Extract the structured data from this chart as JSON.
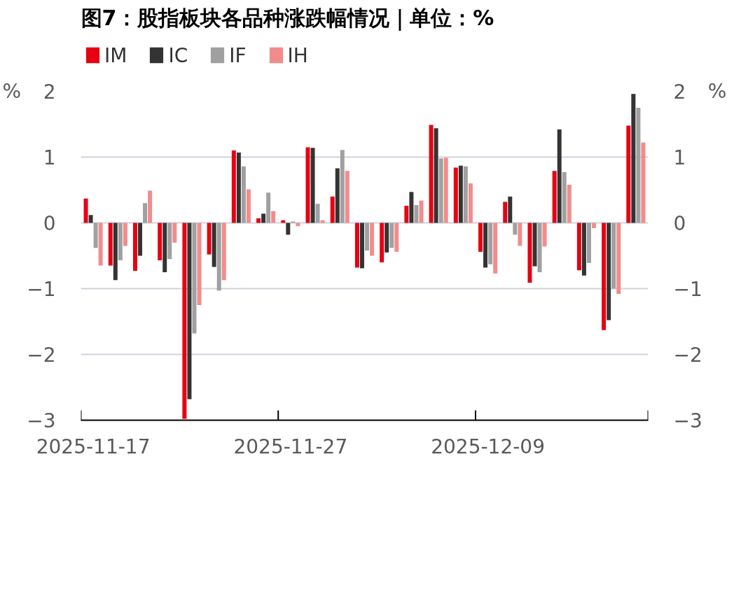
{
  "chart_data": {
    "type": "bar",
    "title": "图7：股指板块各品种涨跌幅情况｜单位：%",
    "categories": [
      "2025-11-17",
      null,
      null,
      null,
      null,
      null,
      null,
      null,
      "2025-11-27",
      null,
      null,
      null,
      null,
      null,
      null,
      null,
      "2025-12-09",
      null,
      null,
      null,
      null,
      null,
      null
    ],
    "series": [
      {
        "name": "IM",
        "color": "#e60012",
        "values": [
          0.37,
          -0.65,
          -0.73,
          -0.57,
          -2.98,
          -0.48,
          1.1,
          0.07,
          0.04,
          1.15,
          0.4,
          -0.68,
          -0.6,
          0.26,
          1.49,
          0.84,
          -0.44,
          0.32,
          -0.91,
          0.79,
          -0.72,
          -1.63,
          1.48
        ]
      },
      {
        "name": "IC",
        "color": "#333333",
        "values": [
          0.12,
          -0.87,
          -0.5,
          -0.75,
          -2.68,
          -0.67,
          1.07,
          0.14,
          -0.18,
          1.14,
          0.83,
          -0.69,
          -0.45,
          0.47,
          1.44,
          0.87,
          -0.68,
          0.4,
          -0.66,
          1.42,
          -0.8,
          -1.48,
          1.96
        ]
      },
      {
        "name": "IF",
        "color": "#a0a0a0",
        "values": [
          -0.38,
          -0.57,
          0.3,
          -0.55,
          -1.68,
          -1.03,
          0.86,
          0.46,
          0.02,
          0.29,
          1.11,
          -0.42,
          -0.38,
          0.27,
          0.98,
          0.86,
          -0.63,
          -0.18,
          -0.75,
          0.77,
          -0.61,
          -1.0,
          1.75
        ]
      },
      {
        "name": "IH",
        "color": "#f28c8c",
        "values": [
          -0.65,
          -0.35,
          0.49,
          -0.3,
          -1.25,
          -0.87,
          0.51,
          0.18,
          -0.05,
          0.04,
          0.79,
          -0.5,
          -0.44,
          0.34,
          0.99,
          0.6,
          -0.77,
          -0.35,
          -0.36,
          0.58,
          -0.08,
          -1.08,
          1.22
        ]
      }
    ],
    "ylabel": "%",
    "y2label": "%",
    "ylim": [
      -3,
      2
    ],
    "yticks": [
      -3,
      -2,
      -1,
      0,
      1,
      2
    ],
    "y2lim": [
      -3,
      2
    ],
    "y2ticks": [
      -3,
      -2,
      -1,
      0,
      1,
      2
    ],
    "grid": "y",
    "legend": "top left"
  }
}
